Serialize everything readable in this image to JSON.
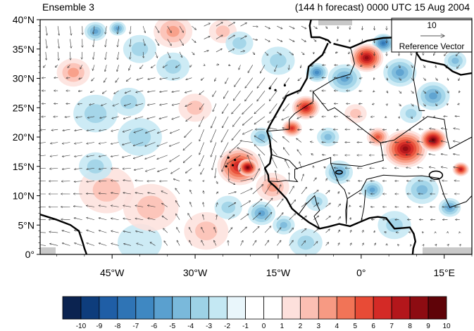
{
  "title_left": "Ensemble 3",
  "title_right": "(144 h forecast) 0000 UTC 15 Aug 2004",
  "reference_vector": {
    "magnitude": "10",
    "label": "Reference Vector"
  },
  "y_ticks": [
    "40°N",
    "35°N",
    "30°N",
    "25°N",
    "20°N",
    "15°N",
    "10°N",
    "5°N",
    "0°"
  ],
  "x_ticks": [
    "45°W",
    "30°W",
    "15°W",
    "0°",
    "15°E"
  ],
  "colorbar": {
    "labels": [
      "-10",
      "-9",
      "-8",
      "-7",
      "-6",
      "-5",
      "-4",
      "-3",
      "-2",
      "-1",
      "0",
      "1",
      "2",
      "3",
      "4",
      "5",
      "6",
      "7",
      "8",
      "9",
      "10"
    ],
    "colors": [
      "#0b2350",
      "#0e3d7c",
      "#1f5ea6",
      "#2f74b5",
      "#3f88c2",
      "#5aa0cf",
      "#7ab9db",
      "#9dd2e6",
      "#c4e8f3",
      "#e9f6fb",
      "#ffffff",
      "#ffffff",
      "#fde0dc",
      "#fbbfb3",
      "#f79a83",
      "#f17457",
      "#e84b36",
      "#d42a26",
      "#b3161b",
      "#8d0c12",
      "#5f0308"
    ]
  },
  "map": {
    "lon_range": [
      -58,
      20
    ],
    "lat_range": [
      0,
      40
    ],
    "anomaly_blobs": [
      {
        "lon": -22,
        "lat": 15,
        "r": 4,
        "v": 7
      },
      {
        "lon": -20.5,
        "lat": 14.8,
        "r": 1.8,
        "v": 9
      },
      {
        "lon": -16,
        "lat": 11.5,
        "r": 3,
        "v": 3
      },
      {
        "lon": -10,
        "lat": 25,
        "r": 2.5,
        "v": 7
      },
      {
        "lon": -12.5,
        "lat": 21.5,
        "r": 1.8,
        "v": 6
      },
      {
        "lon": 1,
        "lat": 33.5,
        "r": 3,
        "v": 8
      },
      {
        "lon": 8,
        "lat": 18,
        "r": 4,
        "v": 8
      },
      {
        "lon": 13,
        "lat": 19.5,
        "r": 2.5,
        "v": 9
      },
      {
        "lon": 3,
        "lat": 20,
        "r": 2,
        "v": 5
      },
      {
        "lon": 18,
        "lat": 14.5,
        "r": 1.5,
        "v": 7
      },
      {
        "lon": -34,
        "lat": 38,
        "r": 3.5,
        "v": 3
      },
      {
        "lon": -25,
        "lat": 38,
        "r": 2.5,
        "v": 2
      },
      {
        "lon": -52,
        "lat": 31,
        "r": 3,
        "v": 3
      },
      {
        "lon": -30,
        "lat": 25,
        "r": 3,
        "v": 2
      },
      {
        "lon": -46,
        "lat": 11,
        "r": 5,
        "v": 2
      },
      {
        "lon": -38,
        "lat": 8,
        "r": 5,
        "v": 2
      },
      {
        "lon": -28,
        "lat": 4,
        "r": 4,
        "v": 2
      },
      {
        "lon": -48,
        "lat": 24,
        "r": 4,
        "v": -2
      },
      {
        "lon": -42,
        "lat": 26,
        "r": 3,
        "v": -2
      },
      {
        "lon": -40,
        "lat": 20,
        "r": 4,
        "v": -2
      },
      {
        "lon": -40,
        "lat": 35,
        "r": 3,
        "v": -2
      },
      {
        "lon": -34,
        "lat": 32,
        "r": 3,
        "v": -2
      },
      {
        "lon": -48,
        "lat": 15,
        "r": 3,
        "v": -2
      },
      {
        "lon": -48,
        "lat": 38,
        "r": 2,
        "v": -4
      },
      {
        "lon": -44,
        "lat": 38.5,
        "r": 1.5,
        "v": -4
      },
      {
        "lon": -22,
        "lat": 36,
        "r": 2.5,
        "v": -2
      },
      {
        "lon": -15,
        "lat": 33,
        "r": 3,
        "v": -2
      },
      {
        "lon": -18,
        "lat": 20,
        "r": 2,
        "v": -3
      },
      {
        "lon": -18,
        "lat": 7,
        "r": 2.5,
        "v": -4
      },
      {
        "lon": -14,
        "lat": 5,
        "r": 2,
        "v": -3
      },
      {
        "lon": -24,
        "lat": 8,
        "r": 2.5,
        "v": -2
      },
      {
        "lon": -8,
        "lat": 31,
        "r": 2,
        "v": -5
      },
      {
        "lon": -3,
        "lat": 30,
        "r": 3,
        "v": -4
      },
      {
        "lon": 7,
        "lat": 31,
        "r": 3,
        "v": -4
      },
      {
        "lon": 4,
        "lat": 36,
        "r": 2,
        "v": -6
      },
      {
        "lon": 13,
        "lat": 27,
        "r": 3,
        "v": -4
      },
      {
        "lon": 17,
        "lat": 33,
        "r": 2,
        "v": -3
      },
      {
        "lon": -4,
        "lat": 14,
        "r": 2.5,
        "v": -4
      },
      {
        "lon": 2,
        "lat": 11,
        "r": 2,
        "v": -4
      },
      {
        "lon": 11,
        "lat": 11,
        "r": 3,
        "v": -3
      },
      {
        "lon": 16,
        "lat": 8,
        "r": 2,
        "v": -4
      },
      {
        "lon": -8,
        "lat": 9,
        "r": 2,
        "v": -2
      },
      {
        "lon": 6,
        "lat": 5,
        "r": 3,
        "v": -2
      },
      {
        "lon": -6,
        "lat": 20,
        "r": 2,
        "v": -3
      },
      {
        "lon": -1,
        "lat": 24,
        "r": 2,
        "v": 2
      },
      {
        "lon": 9,
        "lat": 24,
        "r": 2,
        "v": -2
      },
      {
        "lon": -40,
        "lat": 2,
        "r": 4,
        "v": -1
      },
      {
        "lon": -10,
        "lat": 2,
        "r": 3,
        "v": -2
      }
    ],
    "coastline_africa": [
      [
        -6,
        36
      ],
      [
        -7,
        34
      ],
      [
        -9.5,
        32
      ],
      [
        -9.8,
        30
      ],
      [
        -11,
        28
      ],
      [
        -13.5,
        27
      ],
      [
        -15,
        24.5
      ],
      [
        -16.5,
        22
      ],
      [
        -17,
        21
      ],
      [
        -16.5,
        19.5
      ],
      [
        -16.2,
        17
      ],
      [
        -16.5,
        15.5
      ],
      [
        -17.4,
        14.7
      ],
      [
        -16.8,
        13.5
      ],
      [
        -16.7,
        12.5
      ],
      [
        -15.5,
        11.5
      ],
      [
        -14.8,
        10.8
      ],
      [
        -13.5,
        9.5
      ],
      [
        -12.5,
        7.8
      ],
      [
        -11.3,
        6.8
      ],
      [
        -9.5,
        5.5
      ],
      [
        -7.5,
        4.4
      ],
      [
        -6,
        4.7
      ],
      [
        -4,
        5.2
      ],
      [
        -2,
        4.8
      ],
      [
        0,
        5.6
      ],
      [
        1.5,
        6.2
      ],
      [
        3,
        6.4
      ],
      [
        4.5,
        6.2
      ],
      [
        6,
        4.4
      ],
      [
        7.5,
        4.5
      ],
      [
        8.8,
        4.6
      ],
      [
        9.5,
        3.5
      ],
      [
        9.8,
        2.2
      ],
      [
        9.4,
        1
      ],
      [
        9.3,
        0
      ]
    ],
    "coastline_south_america": [
      [
        -58,
        6.8
      ],
      [
        -55,
        5.9
      ],
      [
        -52.5,
        5
      ],
      [
        -51,
        4
      ],
      [
        -50.3,
        2
      ],
      [
        -50,
        1
      ],
      [
        -49.6,
        0
      ]
    ],
    "coastline_europe": [
      [
        -9,
        43
      ],
      [
        -8.8,
        41
      ],
      [
        -9.3,
        39
      ],
      [
        -9,
        37
      ],
      [
        -7.5,
        37
      ],
      [
        -6,
        36.5
      ],
      [
        -5.5,
        36
      ]
    ],
    "coastline_med": [
      [
        -5,
        35.9
      ],
      [
        -2,
        35.2
      ],
      [
        1,
        36.4
      ],
      [
        4,
        36.9
      ],
      [
        7,
        37
      ],
      [
        9.5,
        37.3
      ],
      [
        10.5,
        36.6
      ],
      [
        10.8,
        35.5
      ],
      [
        10,
        34.3
      ],
      [
        10.8,
        33.2
      ],
      [
        12,
        32.9
      ],
      [
        15,
        32.3
      ],
      [
        16.5,
        31.2
      ],
      [
        18,
        30.6
      ],
      [
        20,
        30.9
      ]
    ],
    "borders": [
      [
        [
          -17,
          21
        ],
        [
          -13,
          21.3
        ],
        [
          -13,
          23
        ],
        [
          -12,
          24
        ],
        [
          -8.7,
          26
        ],
        [
          -8.7,
          27.7
        ],
        [
          -4.8,
          29.9
        ],
        [
          -2,
          30.7
        ],
        [
          -1.2,
          32.5
        ],
        [
          -1.8,
          34.8
        ],
        [
          -2,
          35.2
        ]
      ],
      [
        [
          -8.7,
          27.7
        ],
        [
          -6,
          24.5
        ],
        [
          -4.8,
          25
        ],
        [
          -2,
          23
        ],
        [
          3.5,
          19
        ],
        [
          4,
          16
        ],
        [
          0,
          15
        ],
        [
          -5.5,
          15.5
        ],
        [
          -5.5,
          16.5
        ],
        [
          -12,
          14.5
        ],
        [
          -12,
          13
        ],
        [
          -11.5,
          12.4
        ],
        [
          -13.7,
          12.6
        ],
        [
          -15,
          12.4
        ],
        [
          -16.7,
          12.5
        ]
      ],
      [
        [
          -5.5,
          15.5
        ],
        [
          -4,
          12
        ],
        [
          -3,
          11
        ],
        [
          -2.5,
          9.5
        ],
        [
          -2.7,
          5.2
        ]
      ],
      [
        [
          -16.2,
          17
        ],
        [
          -13,
          16
        ],
        [
          -11.5,
          14.5
        ]
      ],
      [
        [
          -11.3,
          6.8
        ],
        [
          -10,
          8.5
        ],
        [
          -8.4,
          10
        ],
        [
          -8,
          8.5
        ],
        [
          -7.5,
          7.5
        ],
        [
          -8.5,
          6.5
        ],
        [
          -7.5,
          4.4
        ]
      ],
      [
        [
          -2.7,
          5.2
        ],
        [
          -2.8,
          7.5
        ],
        [
          -2.5,
          9.5
        ],
        [
          0,
          11
        ],
        [
          1,
          12.8
        ],
        [
          4,
          13.5
        ],
        [
          7.8,
          13.3
        ],
        [
          11,
          13.4
        ],
        [
          14,
          13
        ],
        [
          15,
          10
        ],
        [
          16,
          8
        ],
        [
          19,
          9
        ],
        [
          20,
          10
        ]
      ],
      [
        [
          3.5,
          19
        ],
        [
          6,
          19.5
        ],
        [
          12,
          23.5
        ],
        [
          15,
          23
        ],
        [
          15.5,
          20
        ],
        [
          16,
          18
        ],
        [
          20,
          20
        ]
      ],
      [
        [
          10,
          34.3
        ],
        [
          9.4,
          30.2
        ],
        [
          10.5,
          24.5
        ],
        [
          11.5,
          24.5
        ]
      ],
      [
        [
          0,
          5.6
        ],
        [
          0.5,
          8
        ],
        [
          0.8,
          11
        ]
      ]
    ],
    "lakes": [
      [
        13.5,
        13.5,
        1.2,
        0.7
      ],
      [
        -4,
        14,
        0.6,
        0.3
      ]
    ],
    "wind_samples": [
      {
        "lon": -55,
        "lat": 38,
        "u": 1,
        "v": -7
      },
      {
        "lon": -45,
        "lat": 38,
        "u": -1,
        "v": -6
      },
      {
        "lon": -35,
        "lat": 38,
        "u": 3,
        "v": -5
      },
      {
        "lon": -25,
        "lat": 38,
        "u": 5,
        "v": 3
      },
      {
        "lon": -15,
        "lat": 38,
        "u": 4,
        "v": -2
      },
      {
        "lon": -55,
        "lat": 28,
        "u": -3,
        "v": 0
      },
      {
        "lon": -35,
        "lat": 28,
        "u": -6,
        "v": -1
      },
      {
        "lon": -18,
        "lat": 28,
        "u": -6,
        "v": -8
      },
      {
        "lon": -5,
        "lat": 28,
        "u": -3,
        "v": 0
      },
      {
        "lon": 10,
        "lat": 28,
        "u": 2,
        "v": -2
      },
      {
        "lon": 18,
        "lat": 38,
        "u": -3,
        "v": -3
      },
      {
        "lon": 5,
        "lat": 38,
        "u": 0,
        "v": -3
      },
      {
        "lon": -50,
        "lat": 18,
        "u": -6,
        "v": -1
      },
      {
        "lon": -35,
        "lat": 18,
        "u": -8,
        "v": -3
      },
      {
        "lon": -25,
        "lat": 21,
        "u": -2,
        "v": -7
      },
      {
        "lon": -17,
        "lat": 16,
        "u": -3,
        "v": 3
      },
      {
        "lon": 0,
        "lat": 18,
        "u": -4,
        "v": 0
      },
      {
        "lon": 15,
        "lat": 18,
        "u": -5,
        "v": 1
      },
      {
        "lon": -55,
        "lat": 8,
        "u": -7,
        "v": 0
      },
      {
        "lon": -40,
        "lat": 8,
        "u": -6,
        "v": 1
      },
      {
        "lon": -30,
        "lat": 8,
        "u": -3,
        "v": 5
      },
      {
        "lon": -20,
        "lat": 7,
        "u": 3,
        "v": 4
      },
      {
        "lon": -10,
        "lat": 7,
        "u": 4,
        "v": 3
      },
      {
        "lon": 5,
        "lat": 8,
        "u": -3,
        "v": 0
      },
      {
        "lon": 15,
        "lat": 8,
        "u": -4,
        "v": 0
      },
      {
        "lon": -50,
        "lat": 2,
        "u": -6,
        "v": 2
      },
      {
        "lon": -30,
        "lat": 1,
        "u": -2,
        "v": 4
      },
      {
        "lon": -15,
        "lat": 1,
        "u": 3,
        "v": 4
      },
      {
        "lon": 0,
        "lat": 1,
        "u": 1,
        "v": 2
      },
      {
        "lon": 15,
        "lat": 1,
        "u": 1,
        "v": 1
      }
    ],
    "vortex": {
      "lon": -21,
      "lat": 14.8,
      "strength": 10,
      "radius": 6
    }
  }
}
